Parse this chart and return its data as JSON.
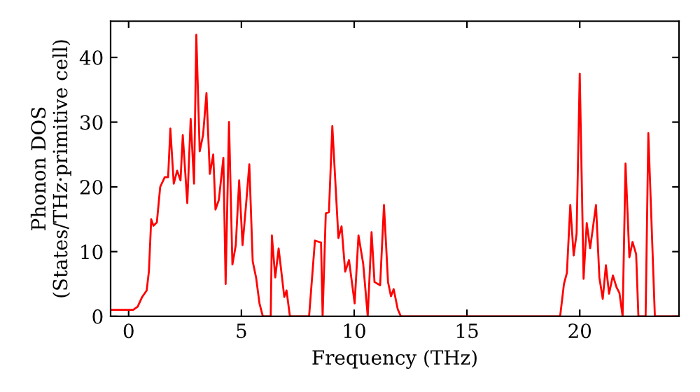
{
  "chart_data": {
    "type": "line",
    "xlabel": "Frequency (THz)",
    "ylabel": "Phonon DOS\n(States/THz·primitive cell)",
    "xlim": [
      -0.8,
      24.4
    ],
    "ylim": [
      0,
      45.6
    ],
    "xticks": [
      0,
      5,
      10,
      15,
      20
    ],
    "yticks": [
      0,
      10,
      20,
      30,
      40
    ],
    "grid": false,
    "legend": false,
    "marker": "none",
    "line_style": "solid",
    "series": [
      {
        "color": "#ff0000",
        "x": [
          -0.8,
          0.2,
          0.4,
          0.6,
          0.8,
          0.9,
          1.0,
          1.1,
          1.25,
          1.4,
          1.6,
          1.75,
          1.85,
          2.0,
          2.15,
          2.3,
          2.4,
          2.6,
          2.75,
          2.9,
          3.0,
          3.15,
          3.3,
          3.45,
          3.6,
          3.75,
          3.85,
          4.0,
          4.2,
          4.3,
          4.45,
          4.6,
          4.75,
          4.9,
          5.05,
          5.2,
          5.35,
          5.5,
          5.65,
          5.8,
          5.95,
          6.3,
          6.35,
          6.5,
          6.65,
          6.9,
          7.0,
          7.15,
          8.0,
          8.26,
          8.53,
          8.6,
          8.74,
          8.88,
          9.03,
          9.3,
          9.44,
          9.6,
          9.77,
          10.02,
          10.19,
          10.4,
          10.6,
          10.77,
          10.9,
          11.15,
          11.32,
          11.5,
          11.63,
          11.75,
          11.93,
          12.07,
          19.13,
          19.3,
          19.43,
          19.58,
          19.73,
          19.86,
          20.0,
          20.17,
          20.31,
          20.46,
          20.72,
          20.87,
          21.02,
          21.16,
          21.3,
          21.47,
          21.63,
          21.76,
          21.9,
          22.03,
          22.2,
          22.34,
          22.5,
          22.6,
          22.92,
          23.04,
          23.33,
          24.4
        ],
        "values": [
          1.0,
          1.0,
          1.5,
          3,
          4,
          7,
          15,
          14,
          14.5,
          20,
          21.5,
          21.5,
          29,
          20.5,
          22.5,
          21,
          28,
          17.5,
          30.5,
          20.5,
          43.5,
          25.5,
          28,
          34.5,
          22,
          25,
          16.5,
          18,
          24.5,
          5,
          30,
          8,
          11,
          21,
          11,
          17,
          23.5,
          8.5,
          6,
          2,
          0,
          0,
          12.5,
          6,
          10.5,
          3,
          4,
          0,
          0,
          11.7,
          11.4,
          0,
          15.9,
          16.1,
          29.4,
          12.1,
          13.9,
          6.9,
          8.7,
          2,
          12.5,
          8.1,
          0,
          13,
          5.3,
          4.8,
          17.2,
          5.3,
          3.1,
          4.2,
          1.1,
          0,
          0,
          5.0,
          6.7,
          17.2,
          9.4,
          12.8,
          37.5,
          5.8,
          14.4,
          10.5,
          17.2,
          6.0,
          2.7,
          7.9,
          3.5,
          6.3,
          4.5,
          3.6,
          0,
          23.6,
          9.1,
          11.5,
          9.6,
          0,
          0,
          28.3,
          0,
          0
        ]
      }
    ]
  }
}
